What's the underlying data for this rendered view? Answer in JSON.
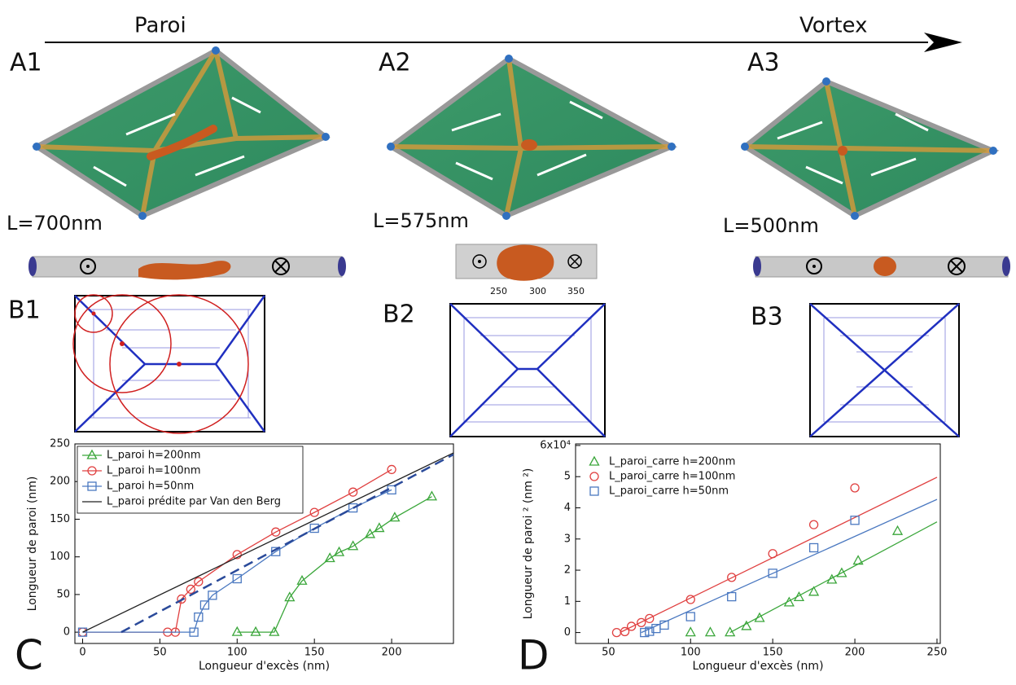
{
  "header": {
    "left": "Paroi",
    "right": "Vortex"
  },
  "panels": {
    "a1": "A1",
    "a2": "A2",
    "a3": "A3",
    "l1": "L=700nm",
    "l2": "L=575nm",
    "l3": "L=500nm",
    "b1": "B1",
    "b2": "B2",
    "b3": "B3",
    "c": "C",
    "d": "D"
  },
  "strip_ticks": [
    "250",
    "300",
    "350"
  ],
  "chart_data": [
    {
      "type": "line",
      "x_label": "Longueur d'excès (nm)",
      "y_label": "Longueur de paroi (nm)",
      "xlim": [
        -5,
        240
      ],
      "ylim": [
        -15,
        250
      ],
      "xticks": [
        0,
        50,
        100,
        150,
        200
      ],
      "yticks": [
        0,
        50,
        100,
        150,
        200,
        250
      ],
      "series": [
        {
          "name": "L_paroi h=200nm",
          "color": "#3aa63a",
          "marker": "triangle",
          "line": true,
          "x": [
            100,
            112,
            124,
            134,
            142,
            160,
            166,
            175,
            186,
            192,
            202,
            226
          ],
          "values": [
            0,
            0,
            0,
            46,
            68,
            98,
            106,
            114,
            130,
            138,
            152,
            180
          ]
        },
        {
          "name": "L_paroi h=100nm",
          "color": "#e04040",
          "marker": "circle",
          "line": true,
          "x": [
            0,
            55,
            60,
            64,
            70,
            75,
            100,
            125,
            150,
            175,
            200
          ],
          "values": [
            0,
            0,
            0,
            44,
            57,
            67,
            103,
            133,
            159,
            186,
            216
          ]
        },
        {
          "name": "L_paroi h=50nm",
          "color": "#4a78c0",
          "marker": "square",
          "line": true,
          "x": [
            0,
            72,
            75,
            79,
            84,
            100,
            125,
            150,
            175,
            200
          ],
          "values": [
            0,
            0,
            20,
            36,
            49,
            71,
            107,
            138,
            165,
            189
          ]
        },
        {
          "name": "L_paroi prédite par Van den Berg",
          "color": "#222222",
          "line": true,
          "x": [
            0,
            240
          ],
          "values": [
            0,
            238
          ]
        },
        {
          "color": "#2a4a9a",
          "line": true,
          "dashed": true,
          "x": [
            25,
            240
          ],
          "values": [
            0,
            236
          ]
        }
      ]
    },
    {
      "type": "scatter",
      "x_label": "Longueur d'excès (nm)",
      "y_label": "Longueur de paroi ² (nm ²)",
      "xlim": [
        30,
        252
      ],
      "ylim": [
        -0.35,
        6.05
      ],
      "xticks": [
        50,
        100,
        150,
        200,
        250
      ],
      "yticks": [
        0,
        1,
        2,
        3,
        4,
        5,
        {
          "value": 6,
          "label": "6x10⁴"
        }
      ],
      "series": [
        {
          "name": "L_paroi_carre h=200nm",
          "color": "#3aa63a",
          "marker": "triangle",
          "x": [
            100,
            112,
            124,
            134,
            142,
            160,
            166,
            175,
            186,
            192,
            202,
            226
          ],
          "values": [
            0,
            0,
            0,
            0.2,
            0.46,
            0.96,
            1.13,
            1.3,
            1.69,
            1.9,
            2.3,
            3.25
          ],
          "fit_x": [
            124,
            250
          ],
          "fit_values": [
            0,
            3.55
          ]
        },
        {
          "name": "L_paroi_carre h=100nm",
          "color": "#e04040",
          "marker": "circle",
          "x": [
            55,
            60,
            64,
            70,
            75,
            100,
            125,
            150,
            175,
            200
          ],
          "values": [
            0,
            0.03,
            0.2,
            0.32,
            0.45,
            1.06,
            1.77,
            2.53,
            3.46,
            4.64
          ],
          "fit_x": [
            57,
            250
          ],
          "fit_values": [
            0,
            4.98
          ]
        },
        {
          "name": "L_paroi_carre h=50nm",
          "color": "#4a78c0",
          "marker": "square",
          "x": [
            72,
            75,
            79,
            84,
            100,
            125,
            150,
            175,
            200
          ],
          "values": [
            0,
            0.04,
            0.13,
            0.24,
            0.51,
            1.15,
            1.9,
            2.72,
            3.6
          ],
          "fit_x": [
            70,
            250
          ],
          "fit_values": [
            0,
            4.27
          ]
        }
      ]
    }
  ]
}
